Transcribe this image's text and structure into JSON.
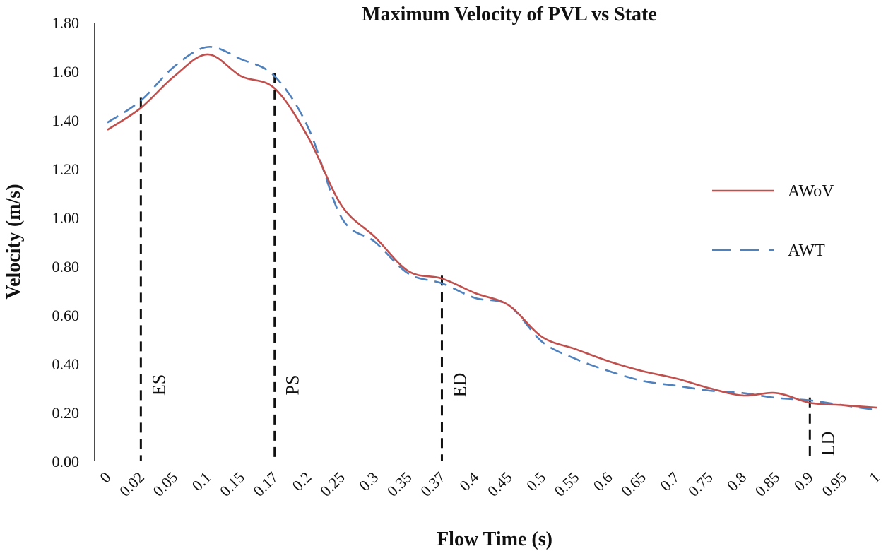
{
  "chart_data": {
    "type": "line",
    "title": "Maximum Velocity of PVL vs State",
    "xlabel": "Flow Time (s)",
    "ylabel": "Velocity (m/s)",
    "ylim": [
      0,
      1.8
    ],
    "y_ticks": [
      "0.00",
      "0.20",
      "0.40",
      "0.60",
      "0.80",
      "1.00",
      "1.20",
      "1.40",
      "1.60",
      "1.80"
    ],
    "categories": [
      "0",
      "0.02",
      "0.05",
      "0.1",
      "0.15",
      "0.17",
      "0.2",
      "0.25",
      "0.3",
      "0.35",
      "0.37",
      "0.4",
      "0.45",
      "0.5",
      "0.55",
      "0.6",
      "0.65",
      "0.7",
      "0.75",
      "0.8",
      "0.85",
      "0.9",
      "0.95",
      "1"
    ],
    "grid": false,
    "legend_position": "right",
    "series": [
      {
        "name": "AWoV",
        "color": "#c0504d",
        "style": "solid",
        "values": [
          1.36,
          1.45,
          1.58,
          1.67,
          1.58,
          1.53,
          1.33,
          1.05,
          0.92,
          0.78,
          0.75,
          0.69,
          0.64,
          0.51,
          0.46,
          0.41,
          0.37,
          0.34,
          0.3,
          0.27,
          0.28,
          0.24,
          0.23,
          0.22
        ]
      },
      {
        "name": "AWT",
        "color": "#4f81bd",
        "style": "dashed",
        "values": [
          1.39,
          1.48,
          1.62,
          1.7,
          1.65,
          1.58,
          1.37,
          1.0,
          0.9,
          0.77,
          0.73,
          0.67,
          0.64,
          0.49,
          0.42,
          0.37,
          0.33,
          0.31,
          0.29,
          0.28,
          0.26,
          0.25,
          0.23,
          0.21
        ]
      }
    ],
    "annotations": [
      {
        "label": "ES",
        "category": "0.02"
      },
      {
        "label": "PS",
        "category": "0.17"
      },
      {
        "label": "ED",
        "category": "0.37"
      },
      {
        "label": "LD",
        "category": "0.9"
      }
    ]
  }
}
